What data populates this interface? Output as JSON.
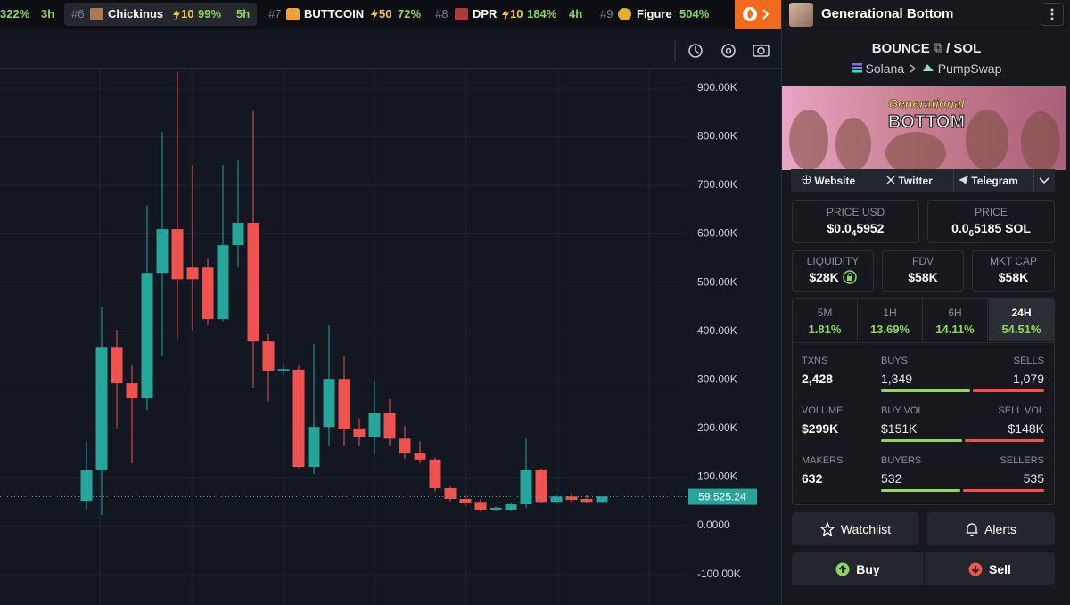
{
  "ticker": [
    {
      "change": "322%",
      "age": "3h"
    },
    {
      "rank": "#6",
      "name": "Chickinus",
      "boost": "10",
      "change": "99%",
      "age": "5h"
    },
    {
      "rank": "#7",
      "name": "BUTTCOIN",
      "boost": "50",
      "change": "72%"
    },
    {
      "rank": "#8",
      "name": "DPR",
      "boost": "10",
      "change": "184%",
      "age": "4h"
    },
    {
      "rank": "#9",
      "name": "Figure",
      "change": "504%"
    }
  ],
  "pair": {
    "name": "Generational Bottom",
    "base": "BOUNCE",
    "separator": "/",
    "quote": "SOL",
    "chain": "Solana",
    "dex": "PumpSwap",
    "banner_line1": "Generational",
    "banner_line2": "BOTTOM"
  },
  "links": [
    "Website",
    "Twitter",
    "Telegram"
  ],
  "price_usd": {
    "label": "PRICE USD",
    "lead": "$0.0",
    "zeros": "4",
    "rest": "5952"
  },
  "price_sol": {
    "label": "PRICE",
    "lead": "0.0",
    "zeros": "6",
    "rest": "5185 SOL"
  },
  "metrics": [
    {
      "label": "LIQUIDITY",
      "value": "$28K"
    },
    {
      "label": "FDV",
      "value": "$58K"
    },
    {
      "label": "MKT CAP",
      "value": "$58K"
    }
  ],
  "timeframes": [
    {
      "label": "5M",
      "change": "1.81%"
    },
    {
      "label": "1H",
      "change": "13.69%"
    },
    {
      "label": "6H",
      "change": "14.11%"
    },
    {
      "label": "24H",
      "change": "54.51%"
    }
  ],
  "stats": {
    "txns": {
      "label": "TXNS",
      "value": "2,428"
    },
    "buys": {
      "label": "BUYS",
      "value": "1,349"
    },
    "sells": {
      "label": "SELLS",
      "value": "1,079"
    },
    "volume": {
      "label": "VOLUME",
      "value": "$299K"
    },
    "buy_vol": {
      "label": "BUY VOL",
      "value": "$151K"
    },
    "sell_vol": {
      "label": "SELL VOL",
      "value": "$148K"
    },
    "makers": {
      "label": "MAKERS",
      "value": "632"
    },
    "buyers": {
      "label": "BUYERS",
      "value": "532"
    },
    "sellers": {
      "label": "SELLERS",
      "value": "535"
    }
  },
  "actions": {
    "watchlist": "Watchlist",
    "alerts": "Alerts",
    "buy": "Buy",
    "sell": "Sell"
  },
  "chart_data": {
    "type": "candlestick",
    "up_color": "#26a69a",
    "down_color": "#ef5350",
    "open": [
      51000,
      114000,
      366000,
      293000,
      262000,
      520000,
      610000,
      531000,
      531000,
      425000,
      577000,
      623000,
      379000,
      319000,
      321000,
      121000,
      203000,
      302000,
      200000,
      183000,
      231000,
      179000,
      150000,
      136000,
      77000,
      55000,
      49000,
      33000,
      33000,
      44000,
      115000,
      49000,
      60000,
      55000,
      49000
    ],
    "high": [
      174000,
      449000,
      403000,
      330000,
      659000,
      810000,
      934000,
      742000,
      549000,
      742000,
      751000,
      852000,
      394000,
      330000,
      330000,
      374000,
      412000,
      348000,
      220000,
      297000,
      260000,
      205000,
      174000,
      140000,
      80000,
      64000,
      55000,
      40000,
      48000,
      179000,
      117000,
      64000,
      68000,
      64000,
      60000
    ],
    "low": [
      33000,
      22000,
      201000,
      128000,
      238000,
      348000,
      385000,
      403000,
      412000,
      421000,
      531000,
      284000,
      256000,
      311000,
      119000,
      106000,
      165000,
      165000,
      165000,
      147000,
      165000,
      137000,
      128000,
      70000,
      50000,
      40000,
      27000,
      30000,
      30000,
      37000,
      46000,
      44000,
      48000,
      46000,
      48000
    ],
    "close": [
      114000,
      366000,
      293000,
      262000,
      520000,
      610000,
      507000,
      507000,
      425000,
      577000,
      623000,
      379000,
      319000,
      322000,
      121000,
      203000,
      302000,
      198000,
      183000,
      231000,
      179000,
      150000,
      136000,
      77000,
      55000,
      46000,
      33000,
      37000,
      44000,
      115000,
      49000,
      60000,
      53000,
      49000,
      60000
    ],
    "last_price": {
      "value": 59525.24,
      "label": "59,525.24"
    },
    "ylim": [
      -163000,
      940000
    ],
    "yticks": [
      {
        "value": 900000,
        "label": "900.00K"
      },
      {
        "value": 800000,
        "label": "800.00K"
      },
      {
        "value": 700000,
        "label": "700.00K"
      },
      {
        "value": 600000,
        "label": "600.00K"
      },
      {
        "value": 500000,
        "label": "500.00K"
      },
      {
        "value": 400000,
        "label": "400.00K"
      },
      {
        "value": 300000,
        "label": "300.00K"
      },
      {
        "value": 200000,
        "label": "200.00K"
      },
      {
        "value": 100000,
        "label": "100.00K"
      },
      {
        "value": 0,
        "label": "0.0000"
      },
      {
        "value": -100000,
        "label": "-100.00K"
      }
    ],
    "grid": true
  }
}
